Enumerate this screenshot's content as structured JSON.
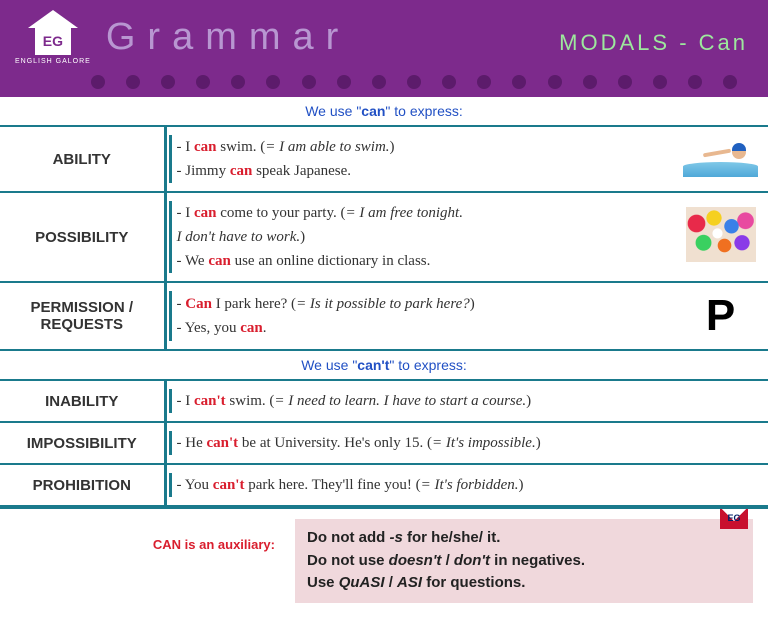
{
  "header": {
    "logo_letters": "EG",
    "logo_subtext": "ENGLISH GALORE",
    "title": "Grammar",
    "subtitle": "MODALS - Can"
  },
  "colors": {
    "header_bg": "#7d2a8c",
    "header_title": "#b896d1",
    "header_subtitle": "#9de89d",
    "dot": "#5c1b6b",
    "rule_border": "#1a7a8c",
    "section_label": "#2150c4",
    "keyword": "#d91e2e",
    "footer_bg": "#f0d8dc"
  },
  "section_can": {
    "prefix": "We use \"",
    "word": "can",
    "suffix": "\" to express:"
  },
  "rows_can": [
    {
      "category": "ABILITY",
      "lines": [
        {
          "pre": "- I ",
          "kw": "can",
          "post": " swim. (",
          "paren": "= I am able to swim.",
          "end": ")"
        },
        {
          "pre": "- Jimmy ",
          "kw": "can",
          "post": " speak Japanese.",
          "paren": "",
          "end": ""
        }
      ],
      "icon": "swimmer"
    },
    {
      "category": "POSSIBILITY",
      "lines": [
        {
          "pre": "- I ",
          "kw": "can",
          "post": " come to your party. (",
          "paren": "= I am free tonight.",
          "end": ""
        },
        {
          "pre": "",
          "kw": "",
          "post": "",
          "paren": "  I don't have to work.",
          "end": ")"
        },
        {
          "pre": "- We ",
          "kw": "can",
          "post": " use an online dictionary in class.",
          "paren": "",
          "end": ""
        }
      ],
      "icon": "balloons"
    },
    {
      "category": "PERMISSION / REQUESTS",
      "lines": [
        {
          "pre": "- ",
          "kw": "Can",
          "post": " I park here? (",
          "paren": "= Is it possible to park here?",
          "end": ")"
        },
        {
          "pre": "- Yes, you ",
          "kw": "can",
          "post": ".",
          "paren": "",
          "end": ""
        }
      ],
      "icon": "P"
    }
  ],
  "section_cant": {
    "prefix": "We use \"",
    "word": "can't",
    "suffix": "\" to express:"
  },
  "rows_cant": [
    {
      "category": "INABILITY",
      "lines": [
        {
          "pre": "- I ",
          "kw": "can't",
          "post": " swim. (",
          "paren": "= I need to learn. I have to start a course.",
          "end": ")"
        }
      ]
    },
    {
      "category": "IMPOSSIBILITY",
      "lines": [
        {
          "pre": "- He ",
          "kw": "can't",
          "post": " be at University. He's only 15. (",
          "paren": "= It's impossible.",
          "end": ")"
        }
      ]
    },
    {
      "category": "PROHIBITION",
      "lines": [
        {
          "pre": "- You ",
          "kw": "can't",
          "post": " park here. They'll fine you! (",
          "paren": "= It's forbidden.",
          "end": ")"
        }
      ]
    }
  ],
  "footer": {
    "left": "CAN is an auxiliary:",
    "line1_a": "Do not add ",
    "line1_b": "-s",
    "line1_c": " for he/she/ it.",
    "line2_a": "Do not use ",
    "line2_b": "doesn't",
    "line2_c": " / ",
    "line2_d": "don't",
    "line2_e": " in negatives.",
    "line3_a": "Use ",
    "line3_b": "QuASI",
    "line3_c": " / ",
    "line3_d": "ASI",
    "line3_e": " for questions.",
    "badge": "EG"
  },
  "dots_count": 19
}
